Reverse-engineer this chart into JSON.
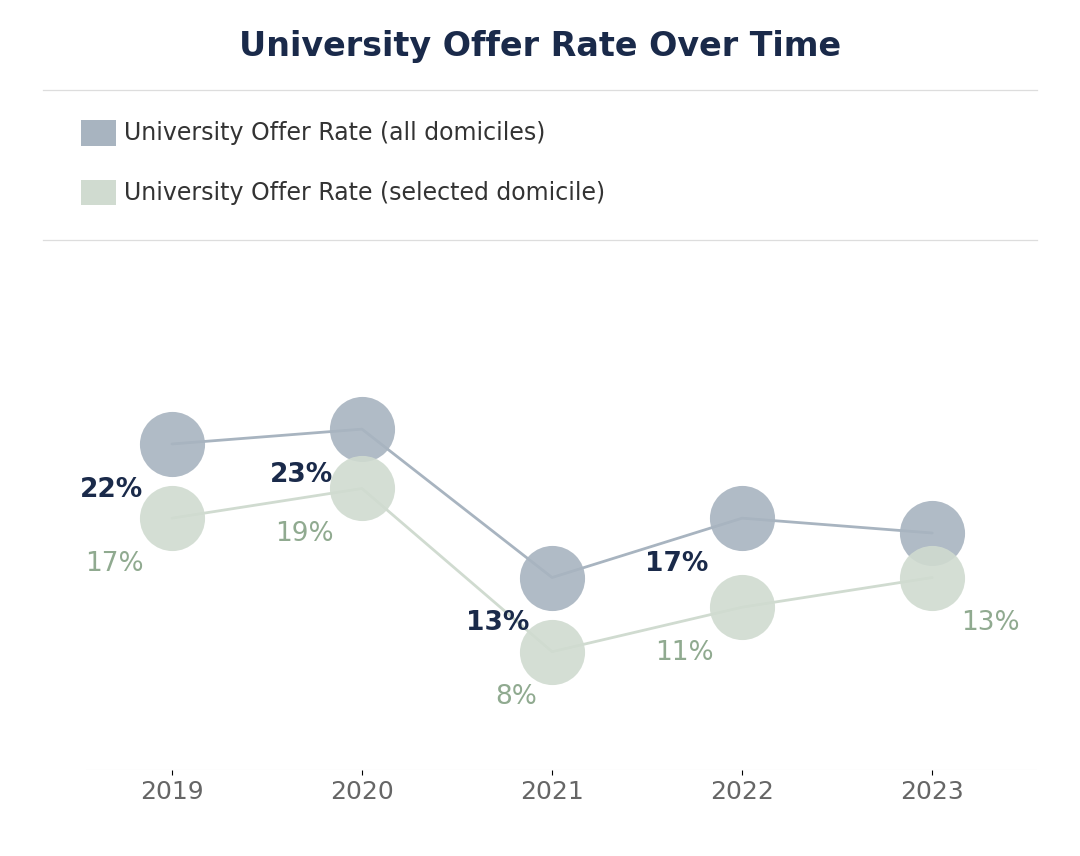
{
  "title": "University Offer Rate Over Time",
  "years": [
    2019,
    2020,
    2021,
    2022,
    2023
  ],
  "all_domiciles": [
    22,
    23,
    13,
    17,
    16
  ],
  "selected_domicile": [
    17,
    19,
    8,
    11,
    13
  ],
  "all_domiciles_labels": [
    "22%",
    "23%",
    "13%",
    "17%",
    null
  ],
  "selected_domicile_labels": [
    "17%",
    "19%",
    "8%",
    "11%",
    "13%"
  ],
  "legend_all": "University Offer Rate (all domiciles)",
  "legend_selected": "University Offer Rate (selected domicile)",
  "color_all_line": "#a8b4c0",
  "color_all_marker": "#a8b4c0",
  "color_selected_line": "#d0dbd0",
  "color_selected_marker": "#d0dbd0",
  "color_all_label": "#1a2a4a",
  "color_selected_label": "#90aa90",
  "background_color": "#ffffff",
  "title_color": "#1a2a4a",
  "title_fontsize": 24,
  "label_fontsize": 19,
  "legend_fontsize": 17,
  "tick_fontsize": 18,
  "marker_size_pts": 2200,
  "line_width": 2.0,
  "separator_color": "#dddddd",
  "tick_color": "#666666"
}
